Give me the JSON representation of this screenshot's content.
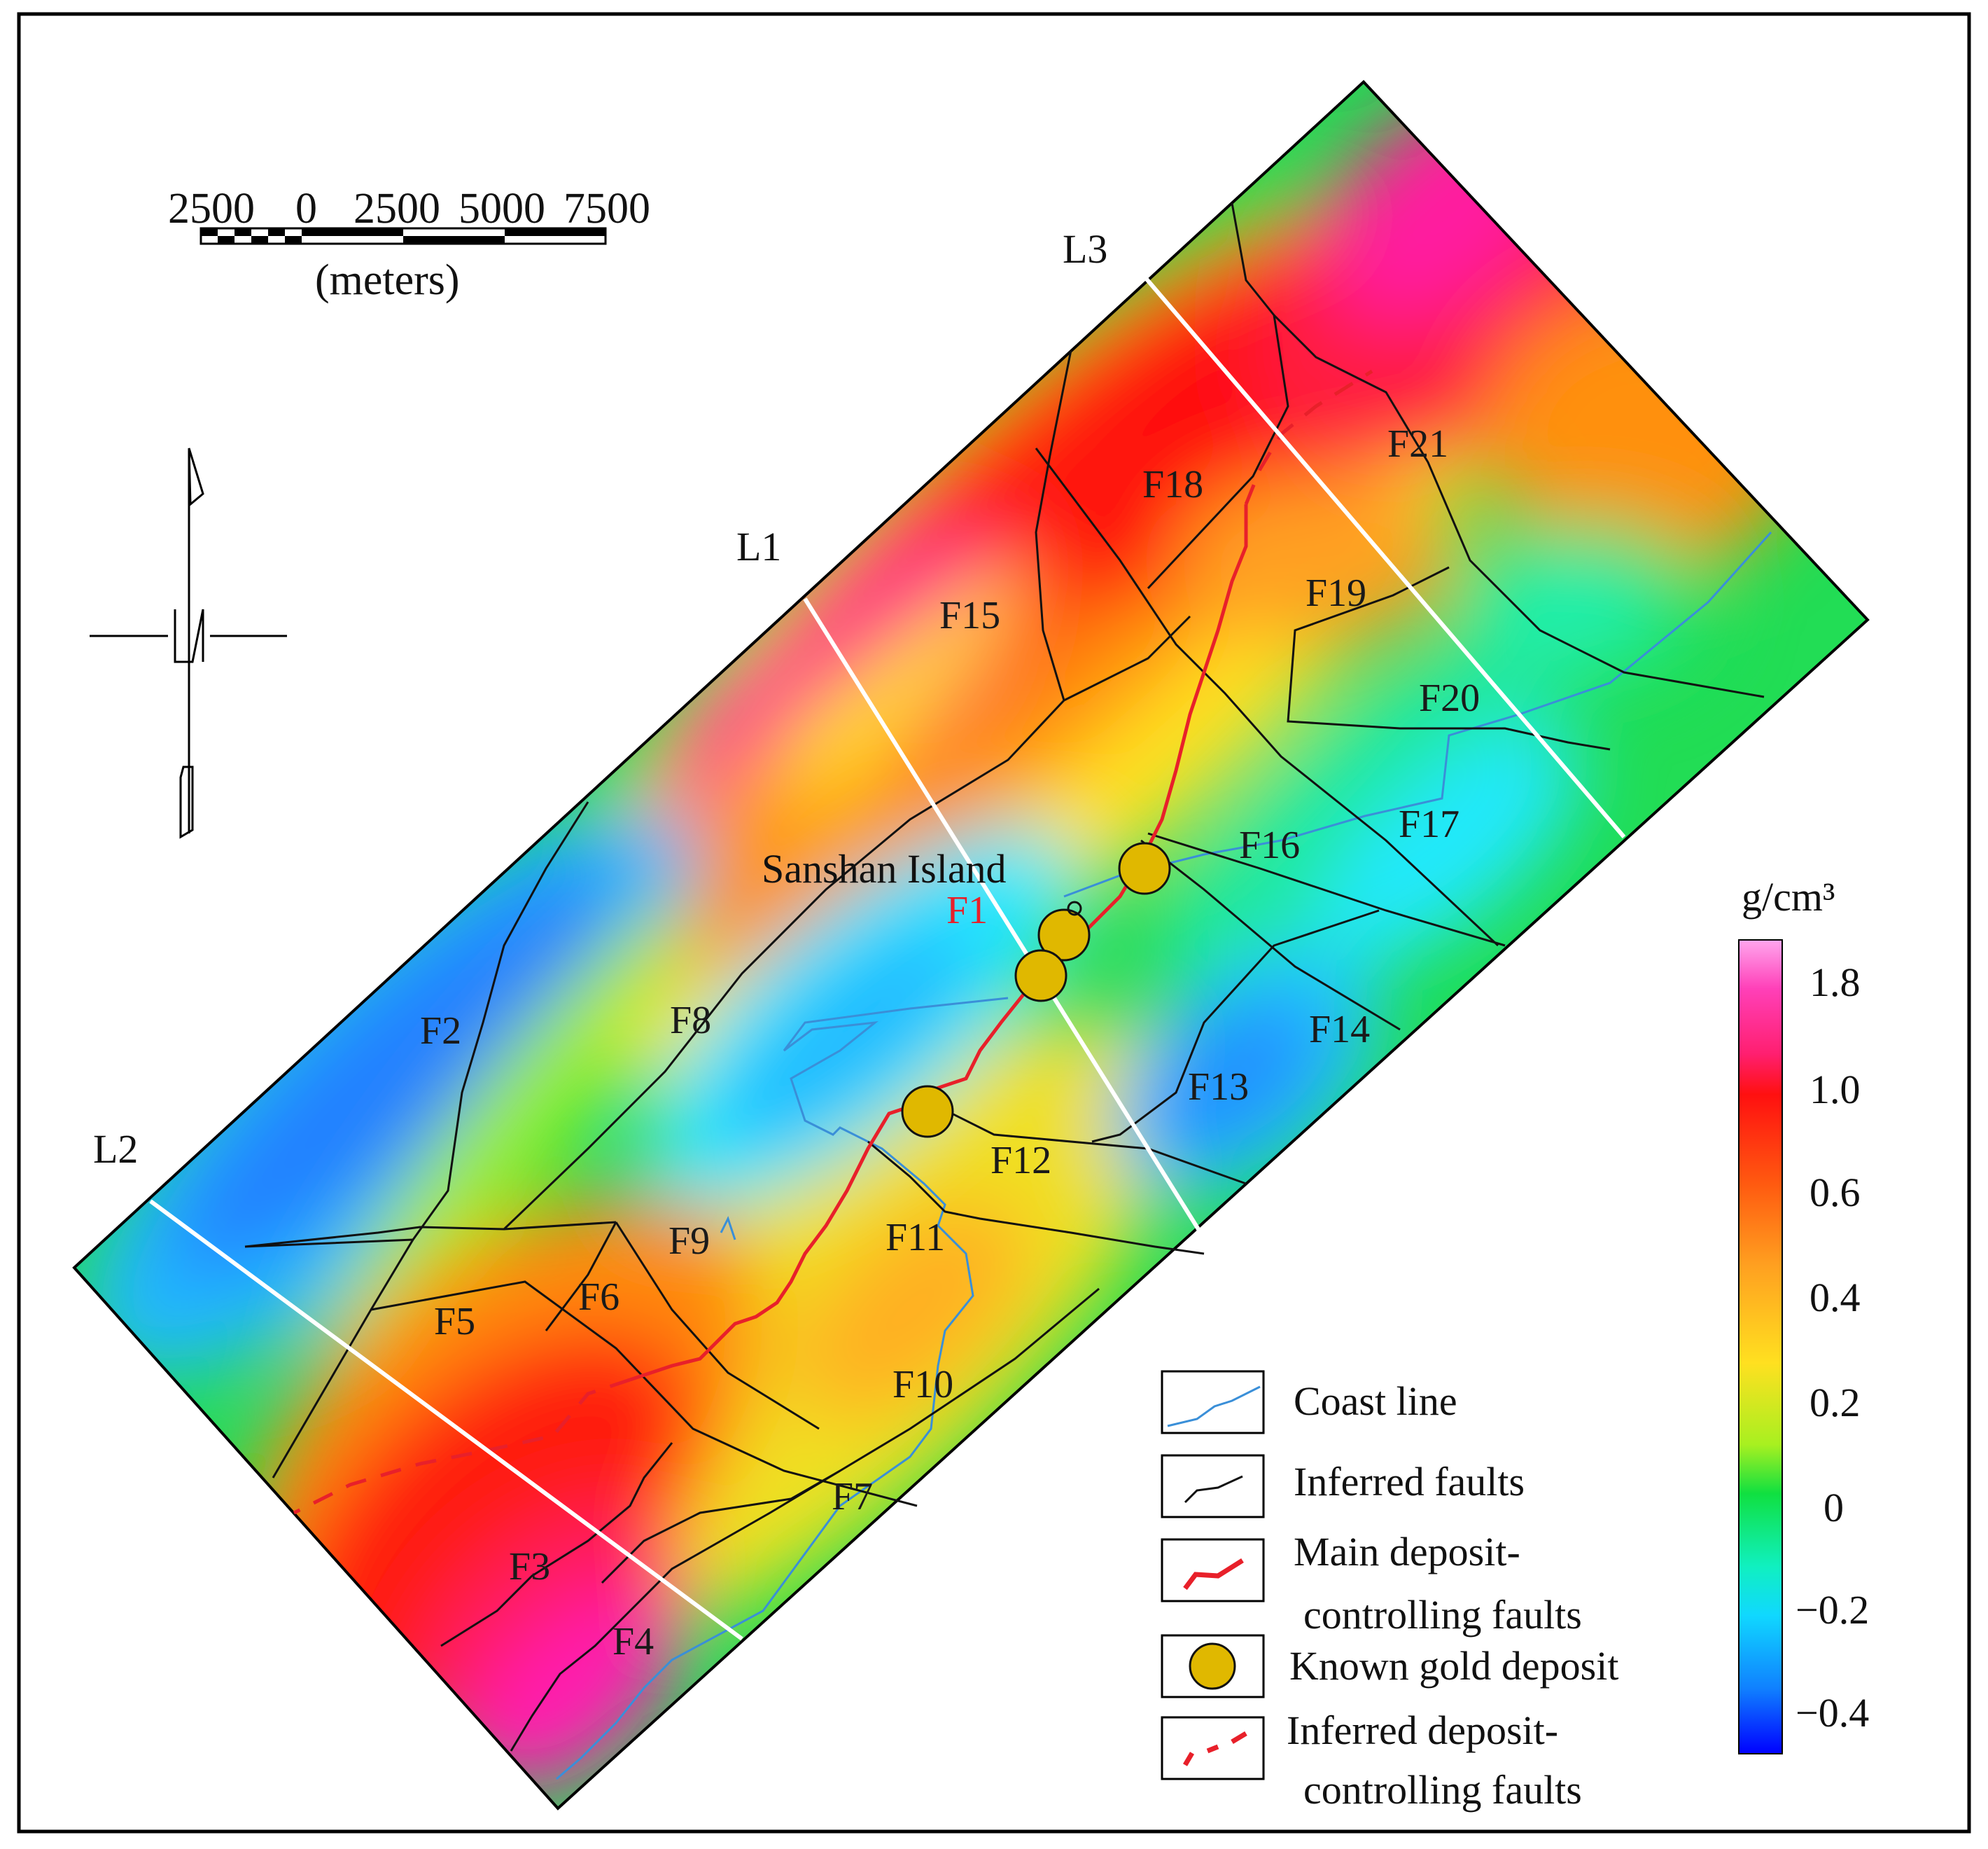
{
  "scale_bar": {
    "ticks": [
      "2500",
      "0",
      "2500",
      "5000",
      "7500"
    ],
    "unit": "(meters)"
  },
  "profiles": {
    "L1": "L1",
    "L2": "L2",
    "L3": "L3"
  },
  "place_label": "Sanshan Island",
  "faults": {
    "F1": "F1",
    "F2": "F2",
    "F3": "F3",
    "F4": "F4",
    "F5": "F5",
    "F6": "F6",
    "F7": "F7",
    "F8": "F8",
    "F9": "F9",
    "F10": "F10",
    "F11": "F11",
    "F12": "F12",
    "F13": "F13",
    "F14": "F14",
    "F15": "F15",
    "F16": "F16",
    "F17": "F17",
    "F18": "F18",
    "F19": "F19",
    "F20": "F20",
    "F21": "F21"
  },
  "colorbar": {
    "unit": "g/cm³",
    "ticks": [
      "1.8",
      "1.0",
      "0.6",
      "0.4",
      "0.2",
      "0",
      "−0.2",
      "−0.4"
    ]
  },
  "legend": {
    "coast_line": "Coast line",
    "inferred_faults": "Inferred faults",
    "main_faults_1": "Main deposit-",
    "main_faults_2": "controlling faults",
    "gold_deposit": "Known gold deposit",
    "inferred_deposit_faults_1": "Inferred deposit-",
    "inferred_deposit_faults_2": "controlling faults"
  },
  "colors": {
    "coast": "#3a8fd8",
    "main_fault": "#e8202a",
    "gold": "#e0b800",
    "fault": "#111111"
  }
}
